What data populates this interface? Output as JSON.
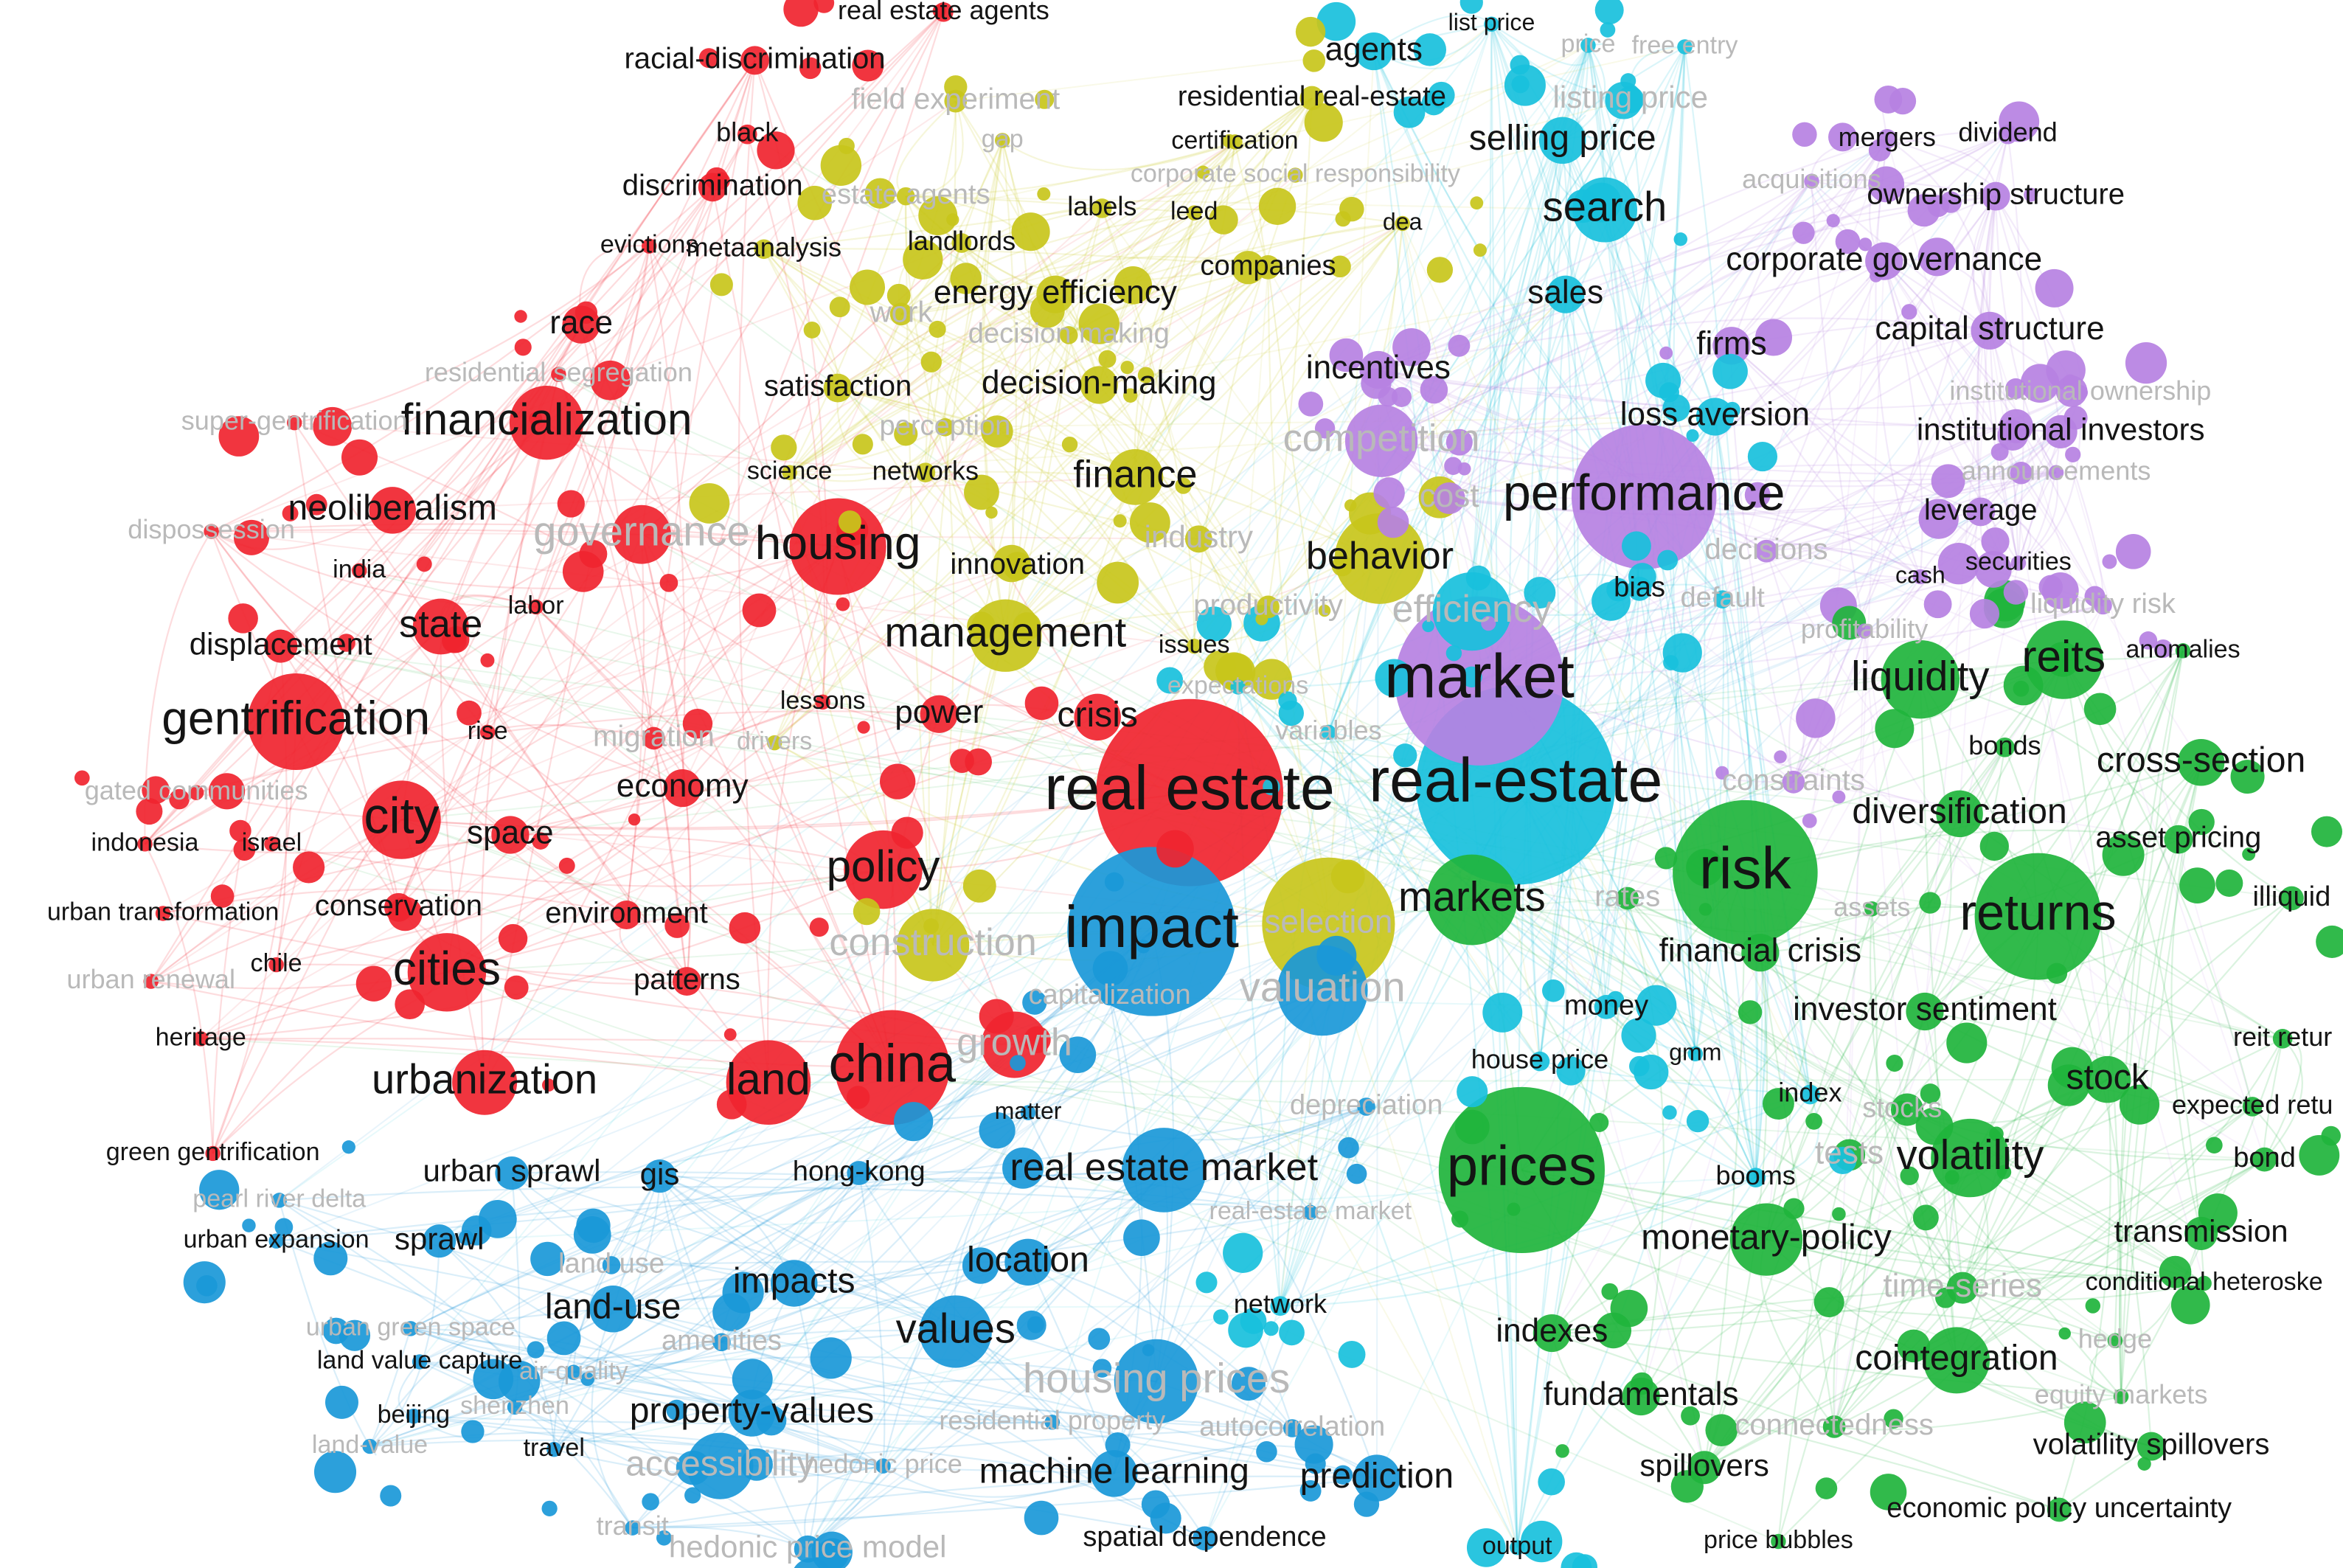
{
  "clusters": [
    {
      "color": "#f0242f",
      "labels": [
        "real estate agents",
        "racial-discrimination",
        "black",
        "discrimination",
        "evictions",
        "race",
        "financialization",
        "neoliberalism",
        "governance",
        "housing",
        "india",
        "state",
        "labor",
        "displacement",
        "gentrification",
        "rise",
        "migration",
        "crisis",
        "power",
        "lessons",
        "economy",
        "city",
        "space",
        "indonesia",
        "israel",
        "conservation",
        "environment",
        "urban transformation",
        "chile",
        "cities",
        "patterns",
        "heritage",
        "urbanization",
        "land",
        "china",
        "real estate",
        "policy",
        "green gentrification",
        "super-gentrification",
        "dispossession",
        "residential segregation",
        "gated communities",
        "urban renewal",
        "growth"
      ]
    },
    {
      "color": "#c8c51b",
      "labels": [
        "field experiment",
        "gap",
        "residential real-estate",
        "certification",
        "corporate social responsibility",
        "estate agents",
        "labels",
        "leed",
        "dea",
        "metaanalysis",
        "landlords",
        "companies",
        "energy efficiency",
        "decision making",
        "work",
        "satisfaction",
        "decision-making",
        "perception",
        "science",
        "networks",
        "finance",
        "innovation",
        "industry",
        "management",
        "issues",
        "drivers",
        "behavior",
        "productivity",
        "construction",
        "selection"
      ]
    },
    {
      "color": "#18c0dc",
      "labels": [
        "agents",
        "list price",
        "price",
        "free entry",
        "listing price",
        "selling price",
        "search",
        "sales",
        "loss aversion",
        "real-estate",
        "bias",
        "default",
        "money",
        "house price",
        "gmm",
        "index",
        "booms",
        "output",
        "network",
        "variables",
        "expectations",
        "efficiency"
      ]
    },
    {
      "color": "#1a98d8",
      "labels": [
        "impact",
        "valuation",
        "capitalization",
        "matter",
        "hong-kong",
        "real estate market",
        "depreciation",
        "real-estate market",
        "urban sprawl",
        "gis",
        "pearl river delta",
        "urban expansion",
        "sprawl",
        "land use",
        "location",
        "impacts",
        "land-use",
        "values",
        "amenities",
        "urban green space",
        "land value capture",
        "air-quality",
        "housing prices",
        "beijing",
        "shenzhen",
        "property-values",
        "residential property",
        "autocorrelation",
        "travel",
        "land-value",
        "accessibility",
        "hedonic price",
        "machine learning",
        "prediction",
        "transit",
        "hedonic price model",
        "spatial dependence"
      ]
    },
    {
      "color": "#b681e2",
      "labels": [
        "mergers",
        "dividend",
        "acquisitions",
        "ownership structure",
        "corporate governance",
        "capital structure",
        "firms",
        "institutional ownership",
        "institutional investors",
        "competition",
        "performance",
        "announcements",
        "leverage",
        "decisions",
        "cash",
        "securities",
        "liquidity risk",
        "market",
        "constraints",
        "profitability",
        "incentives",
        "cost"
      ]
    },
    {
      "color": "#1fb43c",
      "labels": [
        "liquidity",
        "reits",
        "anomalies",
        "bonds",
        "cross-section",
        "diversification",
        "asset pricing",
        "risk",
        "markets",
        "rates",
        "assets",
        "returns",
        "illiquid",
        "financial crisis",
        "investor sentiment",
        "reit retur",
        "stock",
        "expected retu",
        "prices",
        "stocks",
        "tests",
        "volatility",
        "bond",
        "transmission",
        "monetary-policy",
        "conditional heteroske",
        "time-series",
        "indexes",
        "cointegration",
        "hedge",
        "fundamentals",
        "equity markets",
        "connectedness",
        "volatility spillovers",
        "spillovers",
        "economic policy uncertainty",
        "price bubbles"
      ]
    }
  ]
}
